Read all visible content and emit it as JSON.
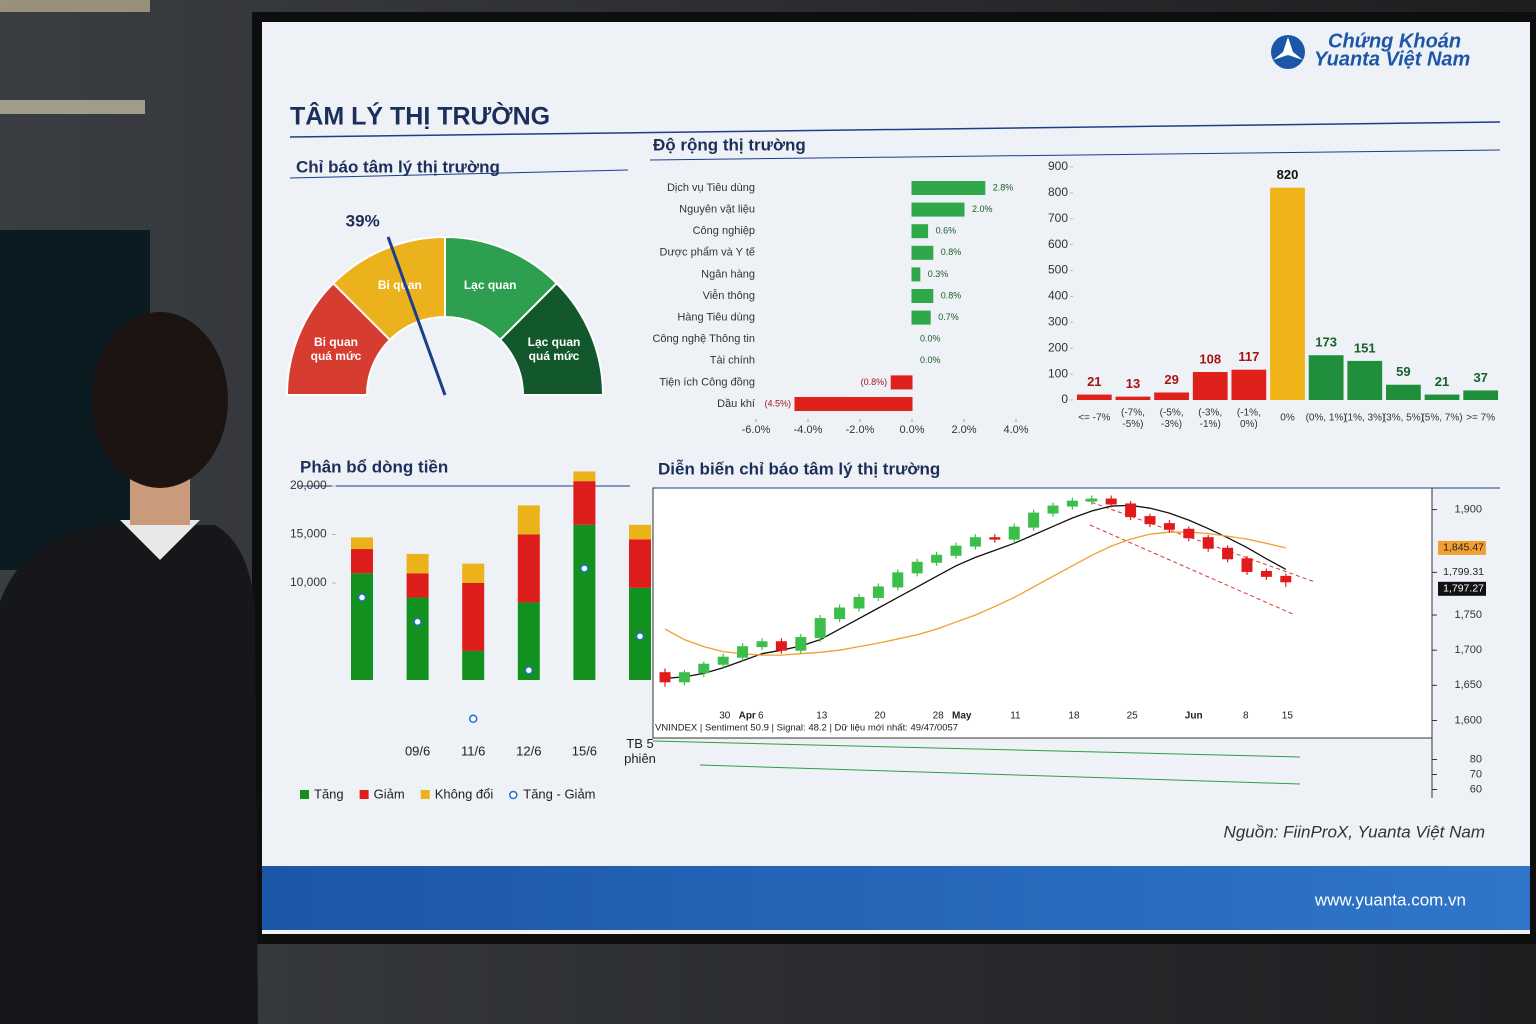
{
  "header": {
    "title": "TÂM LÝ THỊ TRƯỜNG",
    "logo": [
      "Chứng Khoán",
      "Yuanta Việt Nam"
    ]
  },
  "chart_data": [
    {
      "type": "gauge",
      "title": "Chỉ báo tâm lý thị trường",
      "value": 39,
      "value_label": "39%",
      "range": [
        0,
        100
      ],
      "bands": [
        {
          "label": "Bi quan quá mức",
          "from": 0,
          "to": 25,
          "color": "#d63c2f"
        },
        {
          "label": "Bi quan",
          "from": 25,
          "to": 50,
          "color": "#ecb21e"
        },
        {
          "label": "Lạc quan",
          "from": 50,
          "to": 75,
          "color": "#2e9e4f"
        },
        {
          "label": "Lạc quan quá mức",
          "from": 75,
          "to": 100,
          "color": "#12582c"
        }
      ],
      "needle_color": "#1c3f8a"
    },
    {
      "type": "hbar",
      "title": "Độ rộng thị trường",
      "categories": [
        "Dịch vụ Tiêu dùng",
        "Nguyên vật liệu",
        "Công nghiệp",
        "Dược phẩm và Y tế",
        "Ngân hàng",
        "Viễn thông",
        "Hàng Tiêu dùng",
        "Công nghệ Thông tin",
        "Tài chính",
        "Tiện ích Công đồng",
        "Dầu khí"
      ],
      "values": [
        2.8,
        2.0,
        0.6,
        0.8,
        0.3,
        0.8,
        0.7,
        0.0,
        0.0,
        -0.8,
        -4.5
      ],
      "value_labels": [
        "2.8%",
        "2.0%",
        "0.6%",
        "0.8%",
        "0.3%",
        "0.8%",
        "0.7%",
        "0.0%",
        "0.0%",
        "(0.8%)",
        "(4.5%)"
      ],
      "colors": {
        "positive": "#2ea84a",
        "negative": "#e0201b"
      },
      "xlim": [
        -6,
        4
      ],
      "xticks": [
        {
          "value": -6,
          "label": "-6.0%"
        },
        {
          "value": -4,
          "label": "-4.0%"
        },
        {
          "value": -2,
          "label": "-2.0%"
        },
        {
          "value": 0,
          "label": "0.0%"
        },
        {
          "value": 2,
          "label": "2.0%"
        },
        {
          "value": 4,
          "label": "4.0%"
        }
      ]
    },
    {
      "type": "bar",
      "categories": [
        "<= -7%",
        "(-7%, -5%)",
        "(-5%, -3%)",
        "(-3%, -1%)",
        "(-1%, 0%)",
        "0%",
        "(0%, 1%)",
        "(1%, 3%)",
        "(3%, 5%)",
        "(5%, 7%)",
        ">= 7%"
      ],
      "values": [
        21,
        13,
        29,
        108,
        117,
        820,
        173,
        151,
        59,
        21,
        37
      ],
      "colors": [
        "#e0201b",
        "#e0201b",
        "#e0201b",
        "#e0201b",
        "#e0201b",
        "#f0b418",
        "#1f8f3c",
        "#1f8f3c",
        "#1f8f3c",
        "#1f8f3c",
        "#1f8f3c"
      ],
      "label_colors": [
        "#a51414",
        "#a51414",
        "#a51414",
        "#a51414",
        "#a51414",
        "#111111",
        "#17602a",
        "#17602a",
        "#17602a",
        "#17602a",
        "#17602a"
      ],
      "ylim": [
        0,
        900
      ],
      "yticks": [
        0,
        100,
        200,
        300,
        400,
        500,
        600,
        700,
        800,
        900
      ]
    },
    {
      "type": "stacked_bar",
      "title": "Phân bổ dòng tiền",
      "categories": [
        null,
        "09/6",
        "11/6",
        "12/6",
        "15/6",
        "TB 5 phiên"
      ],
      "series": [
        {
          "name": "Tăng",
          "color": "#13911f",
          "values": [
            11000,
            8500,
            3000,
            8000,
            16000,
            9500
          ]
        },
        {
          "name": "Giảm",
          "color": "#dd1c1c",
          "values": [
            2500,
            2500,
            7000,
            7000,
            4500,
            5000
          ]
        },
        {
          "name": "Không đổi",
          "color": "#ebb21a",
          "values": [
            1200,
            2000,
            2000,
            3000,
            1000,
            1500
          ]
        }
      ],
      "net": {
        "name": "Tăng - Giảm",
        "color": "#1f6fd1",
        "values": [
          8500,
          6000,
          -4000,
          1000,
          11500,
          4500
        ]
      },
      "ylim": [
        -5000,
        20000
      ],
      "yticks": [
        {
          "value": 10000,
          "label": "10,000"
        },
        {
          "value": 15000,
          "label": "15,000"
        },
        {
          "value": 20000,
          "label": "20,000"
        }
      ]
    },
    {
      "type": "candlestick",
      "title": "Diễn biến chỉ báo tâm lý thị trường",
      "categories": [
        null,
        null,
        null,
        "30",
        "Apr",
        "6",
        null,
        null,
        "13",
        null,
        null,
        "20",
        null,
        null,
        "28",
        "May",
        null,
        null,
        "11",
        null,
        null,
        "18",
        null,
        null,
        "25",
        null,
        null,
        "Jun",
        null,
        null,
        "8",
        null,
        "15"
      ],
      "open": [
        1668,
        1655,
        1668,
        1680,
        1690,
        1705,
        1712,
        1700,
        1718,
        1745,
        1760,
        1775,
        1790,
        1810,
        1825,
        1835,
        1848,
        1860,
        1858,
        1875,
        1895,
        1905,
        1912,
        1915,
        1908,
        1890,
        1880,
        1872,
        1860,
        1845,
        1830,
        1812,
        1805
      ],
      "high": [
        1674,
        1672,
        1684,
        1695,
        1710,
        1717,
        1717,
        1723,
        1750,
        1765,
        1780,
        1795,
        1815,
        1830,
        1840,
        1853,
        1865,
        1865,
        1880,
        1900,
        1910,
        1917,
        1920,
        1920,
        1912,
        1894,
        1885,
        1876,
        1864,
        1849,
        1834,
        1816,
        1809
      ],
      "low": [
        1648,
        1650,
        1662,
        1675,
        1685,
        1700,
        1695,
        1695,
        1712,
        1740,
        1755,
        1770,
        1785,
        1805,
        1820,
        1830,
        1843,
        1853,
        1852,
        1870,
        1890,
        1900,
        1907,
        1903,
        1885,
        1875,
        1867,
        1855,
        1840,
        1825,
        1807,
        1800,
        1790
      ],
      "close": [
        1655,
        1668,
        1680,
        1690,
        1705,
        1712,
        1700,
        1718,
        1745,
        1760,
        1775,
        1790,
        1810,
        1825,
        1835,
        1848,
        1860,
        1858,
        1875,
        1895,
        1905,
        1912,
        1915,
        1908,
        1890,
        1880,
        1872,
        1860,
        1845,
        1830,
        1812,
        1805,
        1797.27
      ],
      "up_color": "#3cbf4a",
      "down_color": "#e01b1b",
      "lines": [
        {
          "color": "#111111",
          "values": [
            1660,
            1662,
            1667,
            1675,
            1685,
            1695,
            1700,
            1706,
            1715,
            1730,
            1745,
            1760,
            1775,
            1790,
            1805,
            1820,
            1832,
            1842,
            1852,
            1864,
            1876,
            1888,
            1898,
            1905,
            1906,
            1902,
            1895,
            1885,
            1873,
            1860,
            1846,
            1830,
            1815
          ]
        },
        {
          "color": "#f0a030",
          "values": [
            1730,
            1715,
            1705,
            1698,
            1695,
            1693,
            1693,
            1695,
            1697,
            1700,
            1705,
            1710,
            1716,
            1722,
            1730,
            1740,
            1750,
            1762,
            1775,
            1790,
            1805,
            1820,
            1835,
            1848,
            1858,
            1865,
            1868,
            1868,
            1866,
            1862,
            1858,
            1852,
            1845.47
          ]
        }
      ],
      "price_labels": [
        {
          "value": 1845.47,
          "label": "1,845.47",
          "color": "#f0a030"
        },
        {
          "value": 1799.31,
          "label": "1,799.31"
        },
        {
          "value": 1797.27,
          "label": "1,797.27",
          "color": "#111111"
        }
      ],
      "ylim": [
        1595,
        1925
      ],
      "yticks": [
        {
          "value": 1600,
          "label": "1,600"
        },
        {
          "value": 1650,
          "label": "1,650"
        },
        {
          "value": 1700,
          "label": "1,700"
        },
        {
          "value": 1750,
          "label": "1,750"
        },
        {
          "value": 1900,
          "label": "1,900"
        }
      ],
      "sub_panel": {
        "label": "VNINDEX | Sentiment 50.9 | Signal: 48.2 | Dữ liệu mới nhất: 49/47/0057",
        "ylim": [
          57,
          85
        ],
        "yticks": [
          80,
          70,
          60
        ]
      }
    }
  ],
  "footer": {
    "source": "Nguồn: FiinProX, Yuanta Việt Nam",
    "url": "www.yuanta.com.vn"
  }
}
